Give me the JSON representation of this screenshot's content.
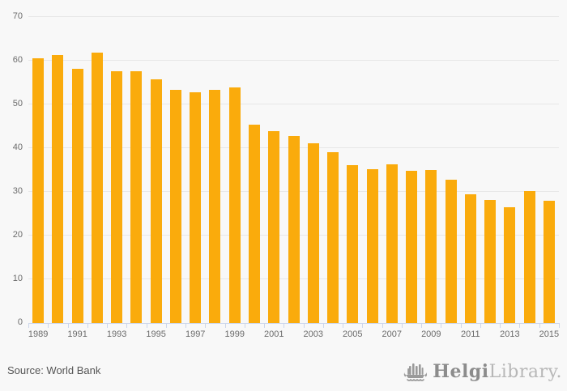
{
  "chart_data": {
    "type": "bar",
    "title": "",
    "xlabel": "",
    "ylabel": "",
    "categories": [
      "1989",
      "1990",
      "1991",
      "1992",
      "1993",
      "1994",
      "1995",
      "1996",
      "1997",
      "1998",
      "1999",
      "2000",
      "2001",
      "2002",
      "2003",
      "2004",
      "2005",
      "2006",
      "2007",
      "2008",
      "2009",
      "2010",
      "2011",
      "2012",
      "2013",
      "2014",
      "2015"
    ],
    "values": [
      60.6,
      61.3,
      58.2,
      61.9,
      57.6,
      57.6,
      55.7,
      53.3,
      52.8,
      53.4,
      53.8,
      45.3,
      43.9,
      42.8,
      41.2,
      39.1,
      36.1,
      35.2,
      36.3,
      34.8,
      35.0,
      32.7,
      29.4,
      28.1,
      26.4,
      30.2,
      27.9
    ],
    "ylim": [
      0,
      70
    ],
    "yticks": [
      0,
      10,
      20,
      30,
      40,
      50,
      60,
      70
    ],
    "x_label_every": 2,
    "grid": true,
    "legend": false,
    "bar_color": "#FAAB0C",
    "gridline_color": "#e7e7e7",
    "axis_line_color": "#ccd6eb",
    "tick_label_color": "#6b6b6b"
  },
  "footer": {
    "source": "Source: World Bank",
    "logo_bold": "Helgi",
    "logo_light": "Library."
  }
}
